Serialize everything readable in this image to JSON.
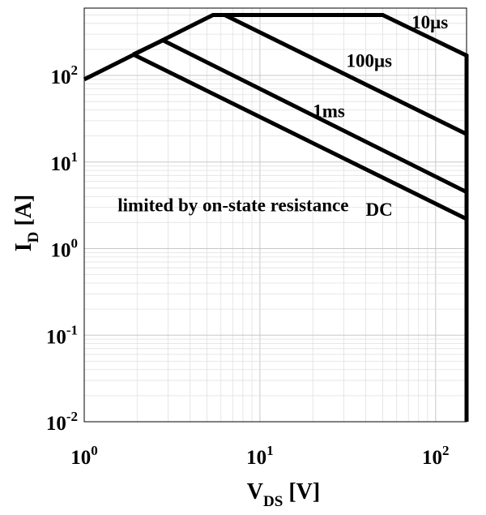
{
  "chart_data": {
    "type": "line",
    "title": "",
    "xlabel": {
      "main": "V",
      "sub": "DS",
      "rest": " [V]"
    },
    "ylabel": {
      "main": "I",
      "sub": "D",
      "rest": " [A]"
    },
    "x_scale": "log",
    "y_scale": "log",
    "xlim": [
      1,
      150
    ],
    "ylim": [
      0.01,
      600
    ],
    "grid": true,
    "x_ticks": [
      {
        "value": 1,
        "base": "10",
        "exp": "0"
      },
      {
        "value": 10,
        "base": "10",
        "exp": "1"
      },
      {
        "value": 100,
        "base": "10",
        "exp": "2"
      }
    ],
    "y_ticks": [
      {
        "value": 0.01,
        "base": "10",
        "exp": "-2"
      },
      {
        "value": 0.1,
        "base": "10",
        "exp": "-1"
      },
      {
        "value": 1,
        "base": "10",
        "exp": "0"
      },
      {
        "value": 10,
        "base": "10",
        "exp": "1"
      },
      {
        "value": 100,
        "base": "10",
        "exp": "2"
      }
    ],
    "series": [
      {
        "key": "10us",
        "points": [
          [
            1,
            90
          ],
          [
            5.4,
            500
          ],
          [
            50,
            500
          ],
          [
            150,
            170
          ],
          [
            150,
            0.01
          ]
        ]
      },
      {
        "key": "100us",
        "points": [
          [
            6.3,
            500
          ],
          [
            150,
            21
          ]
        ]
      },
      {
        "key": "1ms",
        "points": [
          [
            1.9,
            175
          ],
          [
            2.8,
            255
          ],
          [
            150,
            4.5
          ]
        ]
      },
      {
        "key": "DC",
        "points": [
          [
            1.9,
            175
          ],
          [
            150,
            2.2
          ]
        ]
      }
    ],
    "annotations": [
      {
        "key": "10us",
        "text": "10μs",
        "x": 73,
        "y": 350
      },
      {
        "key": "100us",
        "text": "100μs",
        "x": 31,
        "y": 125
      },
      {
        "key": "1ms",
        "text": "1ms",
        "x": 20,
        "y": 33
      },
      {
        "key": "DC",
        "text": "DC",
        "x": 40,
        "y": 2.4
      },
      {
        "key": "limited",
        "text": "limited by on-state resistance",
        "x": 1.55,
        "y": 2.7
      }
    ]
  }
}
